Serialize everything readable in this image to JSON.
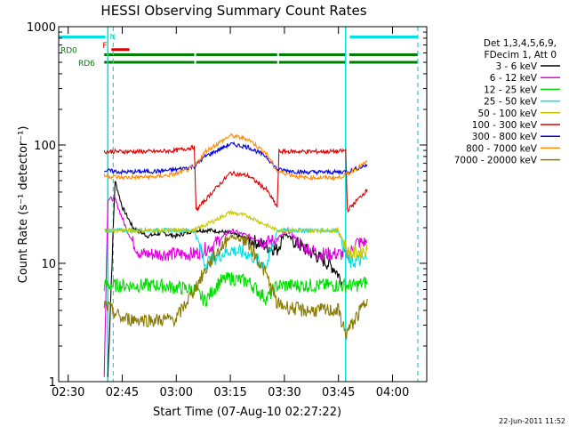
{
  "chart_data": {
    "type": "line",
    "title": "HESSI Observing Summary Count Rates",
    "xlabel": "Start Time (07-Aug-10 02:27:22)",
    "ylabel": "Count Rate (s⁻¹ detector⁻¹)",
    "y_scale": "log",
    "xlim": [
      "02:27:22",
      "04:09:30"
    ],
    "ylim": [
      1,
      1000
    ],
    "x_ticks": [
      "02:30",
      "02:45",
      "03:00",
      "03:15",
      "03:30",
      "03:45",
      "04:00"
    ],
    "y_ticks": [
      "1",
      "10",
      "100",
      "1000"
    ],
    "footer_date": "22-Jun-2011 11:52",
    "legend": {
      "header": [
        "Det 1,3,4,5,6,9,",
        "FDecim 1, Att 0"
      ],
      "placement": "right"
    },
    "series": [
      {
        "name": "3 - 6 keV",
        "color": "#000000",
        "points": [
          [
            "02:41:00",
            1.1
          ],
          [
            "02:43:00",
            50
          ],
          [
            "02:45:00",
            30
          ],
          [
            "02:48:00",
            20
          ],
          [
            "02:52:00",
            17
          ],
          [
            "02:56:00",
            18
          ],
          [
            "03:00:00",
            17
          ],
          [
            "03:05:00",
            19
          ],
          [
            "03:10:00",
            19
          ],
          [
            "03:15:00",
            18
          ],
          [
            "03:20:00",
            16
          ],
          [
            "03:25:00",
            14
          ],
          [
            "03:28:00",
            13
          ],
          [
            "03:30:00",
            18
          ],
          [
            "03:33:00",
            15
          ],
          [
            "03:36:00",
            13
          ],
          [
            "03:40:00",
            11
          ],
          [
            "03:44:00",
            9
          ],
          [
            "03:46:00",
            7
          ]
        ]
      },
      {
        "name": "6 - 12 keV",
        "color": "#e000e0",
        "points": [
          [
            "02:40:00",
            1.1
          ],
          [
            "02:41:00",
            35
          ],
          [
            "02:43:00",
            35
          ],
          [
            "02:46:00",
            20
          ],
          [
            "02:48:00",
            15
          ],
          [
            "02:50:00",
            12
          ],
          [
            "02:55:00",
            12
          ],
          [
            "03:05:00",
            12
          ],
          [
            "03:10:00",
            14
          ],
          [
            "03:15:00",
            19
          ],
          [
            "03:20:00",
            17
          ],
          [
            "03:25:00",
            15
          ],
          [
            "03:28:00",
            16
          ],
          [
            "03:31:00",
            19
          ],
          [
            "03:35:00",
            14
          ],
          [
            "03:40:00",
            12
          ],
          [
            "03:46:00",
            12
          ],
          [
            "03:48:00",
            12
          ],
          [
            "03:50:00",
            15
          ],
          [
            "03:53:00",
            15
          ]
        ]
      },
      {
        "name": "12 - 25 keV",
        "color": "#00dd00",
        "points": [
          [
            "02:40:00",
            6.5
          ],
          [
            "02:50:00",
            6.5
          ],
          [
            "02:55:00",
            6.5
          ],
          [
            "03:05:00",
            6
          ],
          [
            "03:08:00",
            4.8
          ],
          [
            "03:12:00",
            7
          ],
          [
            "03:15:00",
            7.5
          ],
          [
            "03:20:00",
            7
          ],
          [
            "03:25:00",
            5
          ],
          [
            "03:28:00",
            6.5
          ],
          [
            "03:35:00",
            6.5
          ],
          [
            "03:45:00",
            6.5
          ],
          [
            "03:50:00",
            6.5
          ],
          [
            "03:53:00",
            7
          ]
        ]
      },
      {
        "name": "25 - 50 keV",
        "color": "#00e0e0",
        "points": [
          [
            "02:40:00",
            19
          ],
          [
            "02:50:00",
            19
          ],
          [
            "03:00:00",
            19
          ],
          [
            "03:05:00",
            19
          ],
          [
            "03:08:00",
            10
          ],
          [
            "03:15:00",
            13
          ],
          [
            "03:20:00",
            12
          ],
          [
            "03:25:00",
            9.5
          ],
          [
            "03:28:00",
            19
          ],
          [
            "03:35:00",
            19
          ],
          [
            "03:45:00",
            19
          ],
          [
            "03:48:00",
            10
          ],
          [
            "03:53:00",
            11
          ]
        ]
      },
      {
        "name": "50 - 100 keV",
        "color": "#c8c800",
        "points": [
          [
            "02:40:00",
            19
          ],
          [
            "02:50:00",
            19
          ],
          [
            "03:00:00",
            19
          ],
          [
            "03:05:00",
            19
          ],
          [
            "03:08:00",
            21
          ],
          [
            "03:15:00",
            27
          ],
          [
            "03:20:00",
            25
          ],
          [
            "03:25:00",
            21
          ],
          [
            "03:28:00",
            19
          ],
          [
            "03:35:00",
            19
          ],
          [
            "03:45:00",
            19
          ],
          [
            "03:48:00",
            12
          ],
          [
            "03:53:00",
            13
          ]
        ]
      },
      {
        "name": "100 - 300 keV",
        "color": "#dd0000",
        "points": [
          [
            "02:40:00",
            88
          ],
          [
            "02:45:00",
            88
          ],
          [
            "02:55:00",
            88
          ],
          [
            "03:00:00",
            90
          ],
          [
            "03:05:00",
            96
          ],
          [
            "03:05:30",
            28
          ],
          [
            "03:10:00",
            40
          ],
          [
            "03:15:00",
            58
          ],
          [
            "03:20:00",
            55
          ],
          [
            "03:25:00",
            42
          ],
          [
            "03:28:00",
            30
          ],
          [
            "03:28:30",
            88
          ],
          [
            "03:35:00",
            88
          ],
          [
            "03:45:00",
            88
          ],
          [
            "03:47:00",
            90
          ],
          [
            "03:47:30",
            28
          ],
          [
            "03:53:00",
            42
          ]
        ]
      },
      {
        "name": "300 - 800 keV",
        "color": "#0000dd",
        "points": [
          [
            "02:40:00",
            61
          ],
          [
            "02:45:00",
            59
          ],
          [
            "02:55:00",
            60
          ],
          [
            "03:00:00",
            62
          ],
          [
            "03:05:00",
            66
          ],
          [
            "03:08:00",
            80
          ],
          [
            "03:15:00",
            102
          ],
          [
            "03:20:00",
            96
          ],
          [
            "03:25:00",
            80
          ],
          [
            "03:28:00",
            62
          ],
          [
            "03:35:00",
            59
          ],
          [
            "03:45:00",
            59
          ],
          [
            "03:48:00",
            60
          ],
          [
            "03:53:00",
            68
          ]
        ]
      },
      {
        "name": "800 - 7000 keV",
        "color": "#ff8c00",
        "points": [
          [
            "02:40:00",
            55
          ],
          [
            "02:45:00",
            53
          ],
          [
            "02:55:00",
            54
          ],
          [
            "03:00:00",
            57
          ],
          [
            "03:05:00",
            65
          ],
          [
            "03:08:00",
            88
          ],
          [
            "03:15:00",
            120
          ],
          [
            "03:20:00",
            112
          ],
          [
            "03:25:00",
            85
          ],
          [
            "03:28:00",
            60
          ],
          [
            "03:35:00",
            53
          ],
          [
            "03:45:00",
            53
          ],
          [
            "03:48:00",
            58
          ],
          [
            "03:53:00",
            72
          ]
        ]
      },
      {
        "name": "7000 - 20000 keV",
        "color": "#8b7a00",
        "points": [
          [
            "02:40:00",
            4.5
          ],
          [
            "02:45:00",
            3.4
          ],
          [
            "02:55:00",
            3.3
          ],
          [
            "03:00:00",
            3.4
          ],
          [
            "03:05:00",
            6
          ],
          [
            "03:10:00",
            11
          ],
          [
            "03:15:00",
            17
          ],
          [
            "03:20:00",
            15
          ],
          [
            "03:25:00",
            8
          ],
          [
            "03:28:00",
            4.5
          ],
          [
            "03:35:00",
            4
          ],
          [
            "03:45:00",
            4
          ],
          [
            "03:47:00",
            2.5
          ],
          [
            "03:50:00",
            3.5
          ],
          [
            "03:53:00",
            5
          ]
        ]
      }
    ],
    "flags": [
      {
        "label": "RD0",
        "color": "#008000",
        "y": 580,
        "segments": [
          [
            "02:40:00",
            "03:05:00"
          ],
          [
            "03:05:30",
            "03:28:00"
          ],
          [
            "03:28:30",
            "03:47:00"
          ],
          [
            "03:48:00",
            "04:07:00"
          ]
        ]
      },
      {
        "label": "RD6",
        "color": "#008000",
        "y": 500,
        "segments": [
          [
            "02:40:00",
            "03:05:00"
          ],
          [
            "03:05:30",
            "03:28:00"
          ],
          [
            "03:28:30",
            "03:47:00"
          ],
          [
            "03:48:00",
            "04:07:00"
          ]
        ]
      },
      {
        "label": "N",
        "color": "#00e0e0",
        "y": 820,
        "segments": [
          [
            "02:27:22",
            "02:40:20"
          ],
          [
            "03:48:10",
            "04:07:00"
          ]
        ]
      },
      {
        "label": "F",
        "color": "#dd0000",
        "y": 640,
        "segments": [
          [
            "02:42:00",
            "02:47:00"
          ]
        ]
      }
    ],
    "night_markers": {
      "color": "#00e0e0",
      "solid": [
        "02:41:00",
        "03:47:00"
      ],
      "dashed": [
        "02:42:30",
        "04:07:00"
      ]
    }
  }
}
